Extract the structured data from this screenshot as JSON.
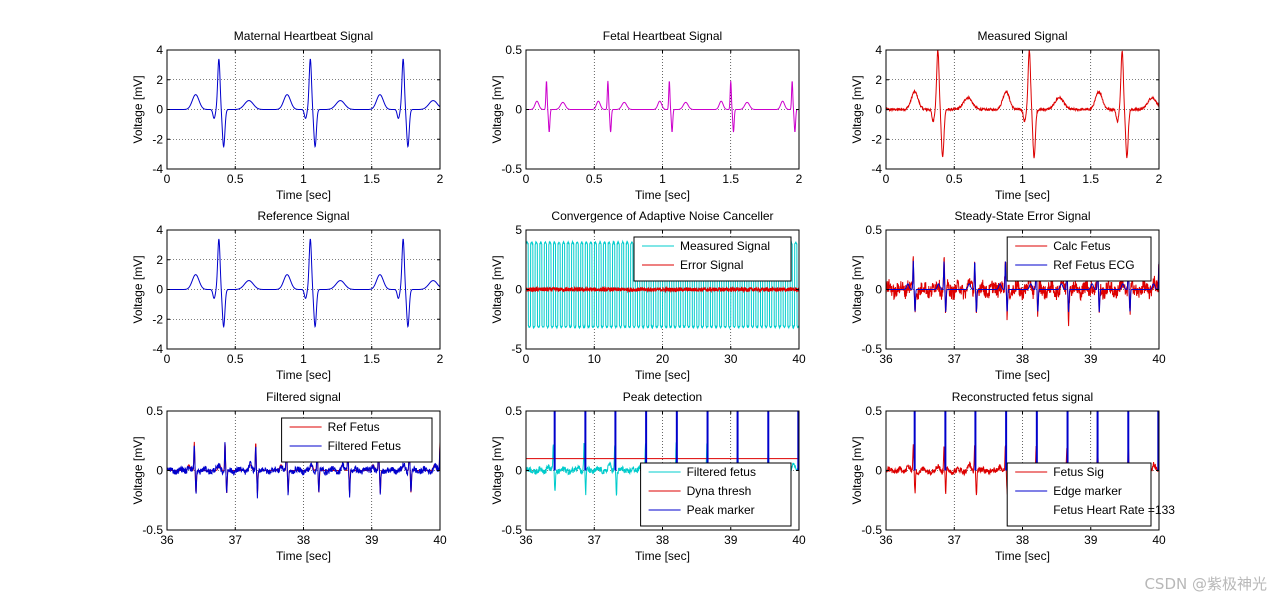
{
  "chart_data": [
    {
      "type": "line",
      "title": "Maternal Heartbeat Signal",
      "xlabel": "Time [sec]",
      "ylabel": "Voltage [mV]",
      "xlim": [
        0,
        2
      ],
      "ylim": [
        -4,
        4
      ],
      "xticks": [
        0,
        0.5,
        1,
        1.5,
        2
      ],
      "yticks": [
        -4,
        -2,
        0,
        2,
        4
      ],
      "xticklabels": [
        "0",
        "0.5",
        "1",
        "1.5",
        "2"
      ],
      "yticklabels": [
        "-4",
        "-2",
        "0",
        "2",
        "4"
      ],
      "grid": "dotted",
      "series": [
        {
          "color": "#0000cc",
          "style": "beats",
          "beat_centers": [
            0.38,
            1.05,
            1.73
          ],
          "beat_amp": {
            "p": 1.0,
            "q": -0.6,
            "r": 3.4,
            "s": -2.5,
            "t": 0.6
          },
          "noise": 0
        }
      ]
    },
    {
      "type": "line",
      "title": "Fetal Heartbeat Signal",
      "xlabel": "Time [sec]",
      "ylabel": "Voltage [mV]",
      "xlim": [
        0,
        2
      ],
      "ylim": [
        -0.5,
        0.5
      ],
      "xticks": [
        0,
        0.5,
        1,
        1.5,
        2
      ],
      "yticks": [
        -0.5,
        0,
        0.5
      ],
      "xticklabels": [
        "0",
        "0.5",
        "1",
        "1.5",
        "2"
      ],
      "yticklabels": [
        "-0.5",
        "0",
        "0.5"
      ],
      "grid": "dotted",
      "series": [
        {
          "color": "#cc00cc",
          "style": "fetal",
          "beat_centers": [
            0.15,
            0.6,
            1.05,
            1.5,
            1.95
          ],
          "beat_amp": {
            "r": 0.24,
            "s": -0.19,
            "p": 0.07,
            "t": 0.06
          },
          "noise": 0
        }
      ]
    },
    {
      "type": "line",
      "title": "Measured Signal",
      "xlabel": "Time [sec]",
      "ylabel": "Voltage [mV]",
      "xlim": [
        0,
        2
      ],
      "ylim": [
        -4,
        4
      ],
      "xticks": [
        0,
        0.5,
        1,
        1.5,
        2
      ],
      "yticks": [
        -4,
        -2,
        0,
        2,
        4
      ],
      "xticklabels": [
        "0",
        "0.5",
        "1",
        "1.5",
        "2"
      ],
      "yticklabels": [
        "-4",
        "-2",
        "0",
        "2",
        "4"
      ],
      "grid": "dotted",
      "series": [
        {
          "color": "#dd0000",
          "style": "beats",
          "beat_centers": [
            0.38,
            1.05,
            1.73
          ],
          "beat_amp": {
            "p": 1.2,
            "q": -0.8,
            "r": 4.0,
            "s": -3.2,
            "t": 0.8
          },
          "noise": 0.08
        }
      ]
    },
    {
      "type": "line",
      "title": "Reference Signal",
      "xlabel": "Time [sec]",
      "ylabel": "Voltage [mV]",
      "xlim": [
        0,
        2
      ],
      "ylim": [
        -4,
        4
      ],
      "xticks": [
        0,
        0.5,
        1,
        1.5,
        2
      ],
      "yticks": [
        -4,
        -2,
        0,
        2,
        4
      ],
      "xticklabels": [
        "0",
        "0.5",
        "1",
        "1.5",
        "2"
      ],
      "yticklabels": [
        "-4",
        "-2",
        "0",
        "2",
        "4"
      ],
      "grid": "dotted",
      "series": [
        {
          "color": "#0000cc",
          "style": "beats",
          "beat_centers": [
            0.38,
            1.05,
            1.73
          ],
          "beat_amp": {
            "p": 1.0,
            "q": -0.6,
            "r": 3.4,
            "s": -2.5,
            "t": 0.6
          },
          "noise": 0
        }
      ]
    },
    {
      "type": "line",
      "title": "Convergence of Adaptive Noise Canceller",
      "xlabel": "Time [sec]",
      "ylabel": "Voltage [mV]",
      "xlim": [
        0,
        40
      ],
      "ylim": [
        -5,
        5
      ],
      "xticks": [
        0,
        10,
        20,
        30,
        40
      ],
      "yticks": [
        -5,
        0,
        5
      ],
      "xticklabels": [
        "0",
        "10",
        "20",
        "30",
        "40"
      ],
      "yticklabels": [
        "-5",
        "0",
        "5"
      ],
      "grid": "dotted",
      "legend": {
        "position": "top-right",
        "entries": [
          "Measured Signal",
          "Error Signal"
        ]
      },
      "series": [
        {
          "name": "Measured Signal",
          "color": "#00cccc",
          "style": "spikes",
          "period": 0.667,
          "high": 4.0,
          "low": -3.2,
          "noise": 0.1
        },
        {
          "name": "Error Signal",
          "color": "#dd0000",
          "style": "noise",
          "amp": 0.35,
          "noise": 0.35
        }
      ]
    },
    {
      "type": "line",
      "title": "Steady-State Error Signal",
      "xlabel": "Time [sec]",
      "ylabel": "Voltage [mV]",
      "xlim": [
        36,
        40
      ],
      "ylim": [
        -0.5,
        0.5
      ],
      "xticks": [
        36,
        37,
        38,
        39,
        40
      ],
      "yticks": [
        -0.5,
        0,
        0.5
      ],
      "xticklabels": [
        "36",
        "37",
        "38",
        "39",
        "40"
      ],
      "yticklabels": [
        "-0.5",
        "0",
        "0.5"
      ],
      "grid": "dotted",
      "legend": {
        "position": "top-right",
        "entries": [
          "Calc Fetus",
          "Ref Fetus ECG"
        ]
      },
      "series": [
        {
          "name": "Calc Fetus",
          "color": "#dd0000",
          "style": "noisyfetal",
          "period": 0.45,
          "offset": 36.4,
          "r": 0.25,
          "s": -0.22,
          "noise": 0.06
        },
        {
          "name": "Ref Fetus ECG",
          "color": "#0000cc",
          "style": "fetal_simple",
          "period": 0.45,
          "offset": 36.4,
          "r": 0.24,
          "s": -0.19,
          "noise": 0
        }
      ]
    },
    {
      "type": "line",
      "title": "Filtered signal",
      "xlabel": "Time [sec]",
      "ylabel": "Voltage [mV]",
      "xlim": [
        36,
        40
      ],
      "ylim": [
        -0.5,
        0.5
      ],
      "xticks": [
        36,
        37,
        38,
        39,
        40
      ],
      "yticks": [
        -0.5,
        0,
        0.5
      ],
      "xticklabels": [
        "36",
        "37",
        "38",
        "39",
        "40"
      ],
      "yticklabels": [
        "-0.5",
        "0",
        "0.5"
      ],
      "grid": "dotted",
      "legend": {
        "position": "top-right",
        "entries": [
          "Ref Fetus",
          "Filtered Fetus"
        ]
      },
      "series": [
        {
          "name": "Ref Fetus",
          "color": "#dd0000",
          "style": "fetal_simple",
          "period": 0.45,
          "offset": 36.4,
          "r": 0.24,
          "s": -0.19,
          "noise": 0
        },
        {
          "name": "Filtered Fetus",
          "color": "#0000cc",
          "style": "noisyfetal",
          "period": 0.45,
          "offset": 36.4,
          "r": 0.22,
          "s": -0.2,
          "noise": 0.025
        }
      ]
    },
    {
      "type": "line",
      "title": "Peak detection",
      "xlabel": "Time [sec]",
      "ylabel": "Voltage [mV]",
      "xlim": [
        36,
        40
      ],
      "ylim": [
        -0.5,
        0.5
      ],
      "xticks": [
        36,
        37,
        38,
        39,
        40
      ],
      "yticks": [
        -0.5,
        0,
        0.5
      ],
      "xticklabels": [
        "36",
        "37",
        "38",
        "39",
        "40"
      ],
      "yticklabels": [
        "-0.5",
        "0",
        "0.5"
      ],
      "grid": "dotted",
      "legend": {
        "position": "bottom-right",
        "entries": [
          "Filtered fetus",
          "Dyna thresh",
          "Peak marker"
        ]
      },
      "series": [
        {
          "name": "Filtered fetus",
          "color": "#00cccc",
          "style": "noisyfetal",
          "period": 0.45,
          "offset": 36.4,
          "r": 0.22,
          "s": -0.2,
          "noise": 0.025
        },
        {
          "name": "Dyna thresh",
          "color": "#dd0000",
          "style": "hline",
          "y": 0.1
        },
        {
          "name": "Peak marker",
          "color": "#0000cc",
          "style": "markers",
          "times": [
            36.42,
            36.87,
            37.31,
            37.76,
            38.21,
            38.66,
            39.1,
            39.55,
            39.99
          ],
          "height": 0.5
        }
      ]
    },
    {
      "type": "line",
      "title": "Reconstructed fetus signal",
      "xlabel": "Time [sec]",
      "ylabel": "Voltage [mV]",
      "xlim": [
        36,
        40
      ],
      "ylim": [
        -0.5,
        0.5
      ],
      "xticks": [
        36,
        37,
        38,
        39,
        40
      ],
      "yticks": [
        -0.5,
        0,
        0.5
      ],
      "xticklabels": [
        "36",
        "37",
        "38",
        "39",
        "40"
      ],
      "yticklabels": [
        "-0.5",
        "0",
        "0.5"
      ],
      "grid": "dotted",
      "legend": {
        "position": "bottom-right",
        "entries": [
          "Fetus Sig",
          "Edge marker"
        ],
        "note": "Fetus Heart Rate =133"
      },
      "series": [
        {
          "name": "Fetus Sig",
          "color": "#dd0000",
          "style": "noisyfetal",
          "period": 0.45,
          "offset": 36.4,
          "r": 0.22,
          "s": -0.2,
          "noise": 0.025
        },
        {
          "name": "Edge marker",
          "color": "#0000cc",
          "style": "markers",
          "times": [
            36.42,
            36.87,
            37.31,
            37.76,
            38.21,
            38.66,
            39.1,
            39.55,
            39.99
          ],
          "height": 0.5
        }
      ]
    }
  ],
  "watermark": "CSDN @紫极神光"
}
